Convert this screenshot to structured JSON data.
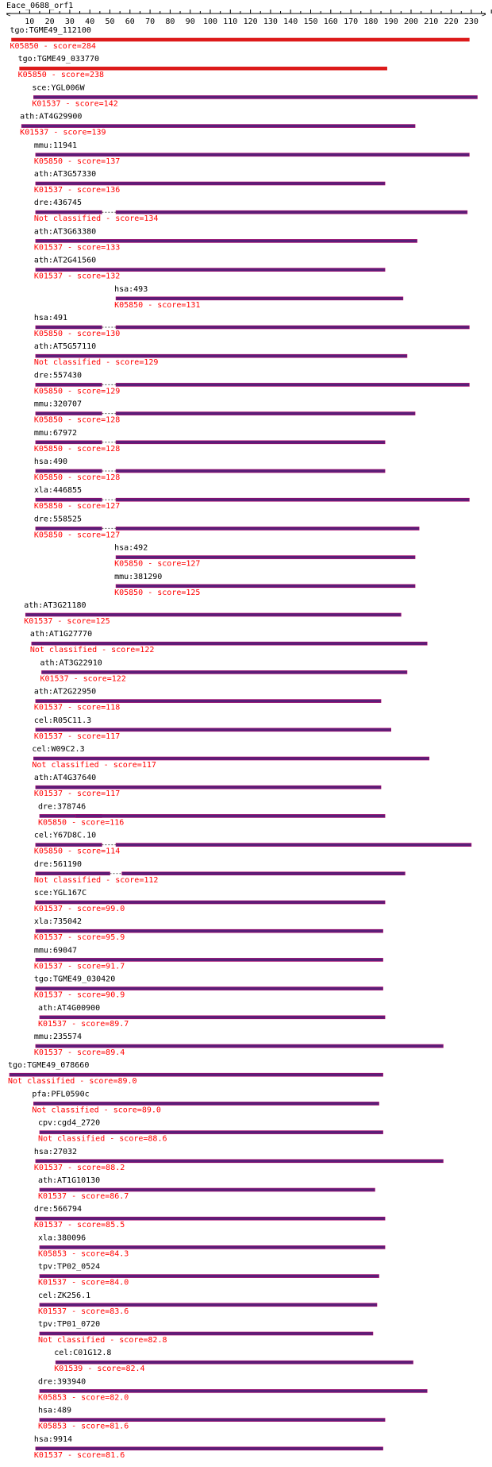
{
  "title": "Eace_0688_orf1",
  "axis": {
    "ticks": [
      10,
      20,
      30,
      40,
      50,
      60,
      70,
      80,
      90,
      100,
      110,
      120,
      130,
      140,
      150,
      160,
      170,
      180,
      190,
      200,
      210,
      220,
      230
    ],
    "min": 0,
    "max": 240
  },
  "colors": {
    "text": "#000000",
    "annotation": "#ff0000",
    "bar_top_hit": "#dd1a1a",
    "bar": "#5a1f78",
    "bar_edge": "#b0006a",
    "gap": "#555555"
  },
  "hits": [
    {
      "name": "tgo:TGME49_112100",
      "annotation": "K05850 - score=284",
      "segments": [
        [
          1,
          229
        ]
      ]
    },
    {
      "name": "tgo:TGME49_033770",
      "annotation": "K05850 - score=238",
      "segments": [
        [
          5,
          188
        ]
      ]
    },
    {
      "name": "sce:YGL006W",
      "annotation": "K01537 - score=142",
      "segments": [
        [
          12,
          233
        ]
      ]
    },
    {
      "name": "ath:AT4G29900",
      "annotation": "K01537 - score=139",
      "segments": [
        [
          6,
          202
        ]
      ]
    },
    {
      "name": "mmu:11941",
      "annotation": "K05850 - score=137",
      "segments": [
        [
          13,
          229
        ]
      ]
    },
    {
      "name": "ath:AT3G57330",
      "annotation": "K01537 - score=136",
      "segments": [
        [
          13,
          187
        ]
      ]
    },
    {
      "name": "dre:436745",
      "annotation": "Not classified - score=134",
      "segments": [
        [
          13,
          46
        ],
        [
          53,
          228
        ]
      ]
    },
    {
      "name": "ath:AT3G63380",
      "annotation": "K01537 - score=133",
      "segments": [
        [
          13,
          203
        ]
      ]
    },
    {
      "name": "ath:AT2G41560",
      "annotation": "K01537 - score=132",
      "segments": [
        [
          13,
          187
        ]
      ]
    },
    {
      "name": "hsa:493",
      "annotation": "K05850 - score=131",
      "segments": [
        [
          53,
          196
        ]
      ]
    },
    {
      "name": "hsa:491",
      "annotation": "K05850 - score=130",
      "segments": [
        [
          13,
          46
        ],
        [
          53,
          229
        ]
      ]
    },
    {
      "name": "ath:AT5G57110",
      "annotation": "Not classified - score=129",
      "segments": [
        [
          13,
          198
        ]
      ]
    },
    {
      "name": "dre:557430",
      "annotation": "K05850 - score=129",
      "segments": [
        [
          13,
          46
        ],
        [
          53,
          229
        ]
      ]
    },
    {
      "name": "mmu:320707",
      "annotation": "K05850 - score=128",
      "segments": [
        [
          13,
          46
        ],
        [
          53,
          202
        ]
      ]
    },
    {
      "name": "mmu:67972",
      "annotation": "K05850 - score=128",
      "segments": [
        [
          13,
          46
        ],
        [
          53,
          187
        ]
      ]
    },
    {
      "name": "hsa:490",
      "annotation": "K05850 - score=128",
      "segments": [
        [
          13,
          46
        ],
        [
          53,
          187
        ]
      ]
    },
    {
      "name": "xla:446855",
      "annotation": "K05850 - score=127",
      "segments": [
        [
          13,
          46
        ],
        [
          53,
          229
        ]
      ]
    },
    {
      "name": "dre:558525",
      "annotation": "K05850 - score=127",
      "segments": [
        [
          13,
          46
        ],
        [
          53,
          204
        ]
      ]
    },
    {
      "name": "hsa:492",
      "annotation": "K05850 - score=127",
      "segments": [
        [
          53,
          202
        ]
      ]
    },
    {
      "name": "mmu:381290",
      "annotation": "K05850 - score=125",
      "segments": [
        [
          53,
          202
        ]
      ]
    },
    {
      "name": "ath:AT3G21180",
      "annotation": "K01537 - score=125",
      "segments": [
        [
          8,
          195
        ]
      ]
    },
    {
      "name": "ath:AT1G27770",
      "annotation": "Not classified - score=122",
      "segments": [
        [
          11,
          208
        ]
      ]
    },
    {
      "name": "ath:AT3G22910",
      "annotation": "K01537 - score=122",
      "segments": [
        [
          16,
          198
        ]
      ]
    },
    {
      "name": "ath:AT2G22950",
      "annotation": "K01537 - score=118",
      "segments": [
        [
          13,
          185
        ]
      ]
    },
    {
      "name": "cel:R05C11.3",
      "annotation": "K01537 - score=117",
      "segments": [
        [
          13,
          190
        ]
      ]
    },
    {
      "name": "cel:W09C2.3",
      "annotation": "Not classified - score=117",
      "segments": [
        [
          12,
          209
        ]
      ]
    },
    {
      "name": "ath:AT4G37640",
      "annotation": "K01537 - score=117",
      "segments": [
        [
          13,
          185
        ]
      ]
    },
    {
      "name": "dre:378746",
      "annotation": "K05850 - score=116",
      "segments": [
        [
          15,
          46
        ],
        [
          33,
          187
        ]
      ]
    },
    {
      "name": "cel:Y67D8C.10",
      "annotation": "K05850 - score=114",
      "segments": [
        [
          13,
          46
        ],
        [
          53,
          230
        ]
      ]
    },
    {
      "name": "dre:561190",
      "annotation": "Not classified - score=112",
      "segments": [
        [
          13,
          50
        ],
        [
          56,
          197
        ]
      ]
    },
    {
      "name": "sce:YGL167C",
      "annotation": "K01537 - score=99.0",
      "segments": [
        [
          13,
          187
        ]
      ]
    },
    {
      "name": "xla:735042",
      "annotation": "K01537 - score=95.9",
      "segments": [
        [
          13,
          186
        ]
      ]
    },
    {
      "name": "mmu:69047",
      "annotation": "K01537 - score=91.7",
      "segments": [
        [
          13,
          186
        ]
      ]
    },
    {
      "name": "tgo:TGME49_030420",
      "annotation": "K01537 - score=90.9",
      "segments": [
        [
          13,
          186
        ]
      ]
    },
    {
      "name": "ath:AT4G00900",
      "annotation": "K01537 - score=89.7",
      "segments": [
        [
          15,
          187
        ]
      ]
    },
    {
      "name": "mmu:235574",
      "annotation": "K01537 - score=89.4",
      "segments": [
        [
          13,
          216
        ]
      ]
    },
    {
      "name": "tgo:TGME49_078660",
      "annotation": "Not classified - score=89.0",
      "segments": [
        [
          0,
          186
        ]
      ]
    },
    {
      "name": "pfa:PFL0590c",
      "annotation": "Not classified - score=89.0",
      "segments": [
        [
          12,
          184
        ]
      ]
    },
    {
      "name": "cpv:cgd4_2720",
      "annotation": "Not classified - score=88.6",
      "segments": [
        [
          15,
          186
        ]
      ]
    },
    {
      "name": "hsa:27032",
      "annotation": "K01537 - score=88.2",
      "segments": [
        [
          13,
          216
        ]
      ]
    },
    {
      "name": "ath:AT1G10130",
      "annotation": "K01537 - score=86.7",
      "segments": [
        [
          15,
          182
        ]
      ]
    },
    {
      "name": "dre:566794",
      "annotation": "K01537 - score=85.5",
      "segments": [
        [
          13,
          187
        ]
      ]
    },
    {
      "name": "xla:380096",
      "annotation": "K05853 - score=84.3",
      "segments": [
        [
          15,
          187
        ]
      ]
    },
    {
      "name": "tpv:TP02_0524",
      "annotation": "K01537 - score=84.0",
      "segments": [
        [
          15,
          184
        ]
      ]
    },
    {
      "name": "cel:ZK256.1",
      "annotation": "K01537 - score=83.6",
      "segments": [
        [
          15,
          183
        ]
      ]
    },
    {
      "name": "tpv:TP01_0720",
      "annotation": "Not classified - score=82.8",
      "segments": [
        [
          15,
          181
        ]
      ]
    },
    {
      "name": "cel:C01G12.8",
      "annotation": "K01539 - score=82.4",
      "segments": [
        [
          23,
          201
        ]
      ]
    },
    {
      "name": "dre:393940",
      "annotation": "K05853 - score=82.0",
      "segments": [
        [
          15,
          208
        ]
      ]
    },
    {
      "name": "hsa:489",
      "annotation": "K05853 - score=81.6",
      "segments": [
        [
          15,
          187
        ]
      ]
    },
    {
      "name": "hsa:9914",
      "annotation": "K01537 - score=81.6",
      "segments": [
        [
          13,
          186
        ]
      ]
    }
  ]
}
